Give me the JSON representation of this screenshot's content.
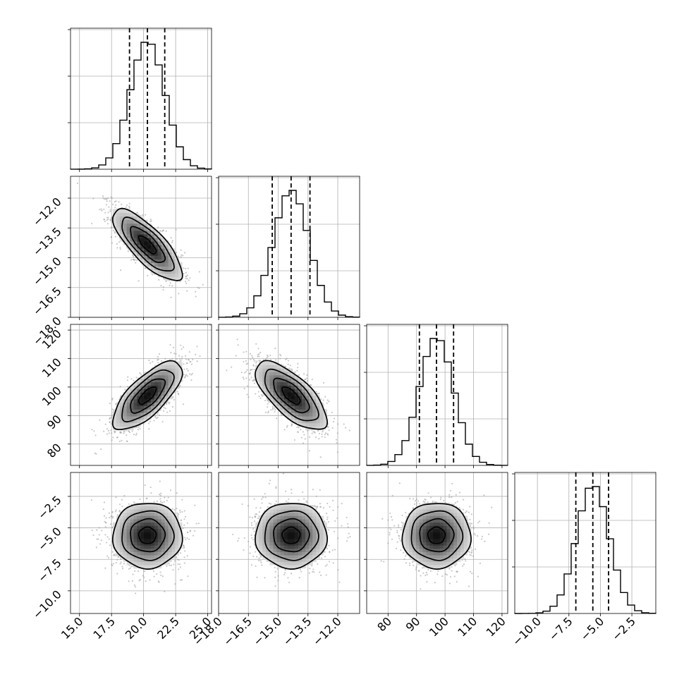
{
  "chart_data": {
    "type": "corner",
    "title": "",
    "parameters": [
      {
        "range": [
          14.3,
          25.3
        ],
        "ticks": [
          15.0,
          17.5,
          20.0,
          22.5,
          25.0
        ],
        "tick_labels": [
          "15.0",
          "17.5",
          "20.0",
          "22.5",
          "25.0"
        ],
        "mean": 20.3,
        "std": 1.35,
        "quantiles": [
          18.9,
          20.3,
          21.65
        ]
      },
      {
        "range": [
          -18.0,
          -10.9
        ],
        "ticks": [
          -18.0,
          -16.5,
          -15.0,
          -13.5,
          -12.0
        ],
        "tick_labels": [
          "−18.0",
          "−16.5",
          "−15.0",
          "−13.5",
          "−12.0"
        ],
        "mean": -14.35,
        "std": 0.9,
        "quantiles": [
          -15.3,
          -14.35,
          -13.4
        ]
      },
      {
        "range": [
          72.5,
          122.0
        ],
        "ticks": [
          80,
          90,
          100,
          110,
          120
        ],
        "tick_labels": [
          "80",
          "90",
          "100",
          "110",
          "120"
        ],
        "mean": 97.0,
        "std": 6.0,
        "quantiles": [
          91.0,
          97.0,
          103.0
        ]
      },
      {
        "range": [
          -11.8,
          -0.6
        ],
        "ticks": [
          -10.0,
          -7.5,
          -5.0,
          -2.5
        ],
        "tick_labels": [
          "−10.0",
          "−7.5",
          "−5.0",
          "−2.5"
        ],
        "mean": -5.6,
        "std": 1.3,
        "quantiles": [
          -6.95,
          -5.6,
          -4.35
        ]
      }
    ],
    "correlations": [
      [
        1.0,
        -0.78,
        0.72,
        0.0
      ],
      [
        -0.78,
        1.0,
        -0.7,
        0.0
      ],
      [
        0.72,
        -0.7,
        1.0,
        0.0
      ],
      [
        0.0,
        0.0,
        0.0,
        1.0
      ]
    ],
    "grid": true,
    "histogram_style": "step",
    "quantile_lines": "dashed"
  }
}
